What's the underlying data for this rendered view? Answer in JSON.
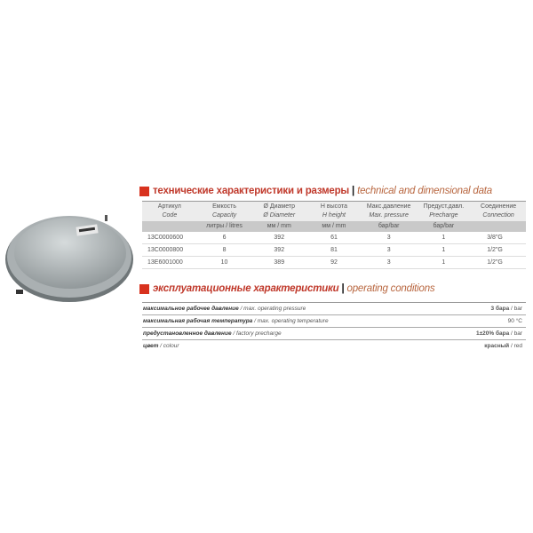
{
  "section1": {
    "title_ru": "технические характеристики и размеры",
    "title_en": "technical and dimensional data"
  },
  "table": {
    "headers": [
      {
        "ru": "Артикул",
        "en": "Code",
        "unit": ""
      },
      {
        "ru": "Емкость",
        "en": "Capacity",
        "unit": "литры / litres"
      },
      {
        "ru": "Ø Диаметр",
        "en": "Ø Diameter",
        "unit": "мм / mm"
      },
      {
        "ru": "H высота",
        "en": "H height",
        "unit": "мм / mm"
      },
      {
        "ru": "Макс.давление",
        "en": "Max. pressure",
        "unit": "бар/bar"
      },
      {
        "ru": "Предуст.давл.",
        "en": "Precharge",
        "unit": "бар/bar"
      },
      {
        "ru": "Соединение",
        "en": "Connection",
        "unit": ""
      }
    ],
    "rows": [
      [
        "13C0000600",
        "6",
        "392",
        "61",
        "3",
        "1",
        "3/8\"G"
      ],
      [
        "13C0000800",
        "8",
        "392",
        "81",
        "3",
        "1",
        "1/2\"G"
      ],
      [
        "13E6001000",
        "10",
        "389",
        "92",
        "3",
        "1",
        "1/2\"G"
      ]
    ]
  },
  "section2": {
    "title_ru": "эксплуатационные характеристики",
    "title_en": "operating conditions"
  },
  "conditions": [
    {
      "ru": "максимальное рабочее давление",
      "en": " / max. operating pressure",
      "value_b": "3 бара",
      "value": " / bar"
    },
    {
      "ru": "максимальная рабочая  температура",
      "en": " / max. operating temperature",
      "value_b": "",
      "value": "90 °C"
    },
    {
      "ru": "предустановленное  давление",
      "en": " / factory precharge",
      "value_b": "1±20% бара",
      "value": " / bar"
    },
    {
      "ru": "цвет",
      "en": " / colour",
      "value_b": "красный",
      "value": " / red"
    }
  ],
  "colors": {
    "accent": "#d8321e",
    "title_ru": "#c0392b",
    "title_en": "#b8663f"
  }
}
